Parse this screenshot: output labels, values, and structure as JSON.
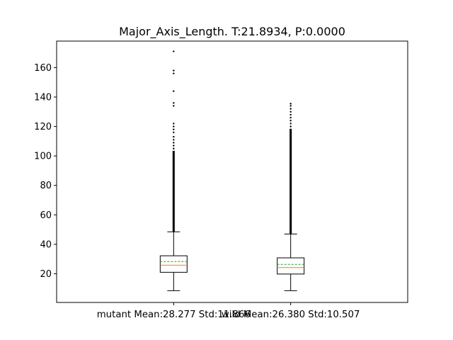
{
  "chart_data": {
    "type": "boxplot",
    "title": "Major_Axis_Length. T:21.8934, P:0.0000",
    "xlabel": "",
    "ylabel": "",
    "categories": [
      "mutant Mean:28.277 Std:11.866",
      "wild Mean:26.380 Std:10.507"
    ],
    "ylim": [
      0.5,
      178
    ],
    "yticks": [
      20,
      40,
      60,
      80,
      100,
      120,
      140,
      160
    ],
    "grid": false,
    "show_mean_line": true,
    "colors": {
      "box": "#000000",
      "median": "#ff7f0e",
      "mean": "#2ca02c",
      "flier": "#000000"
    },
    "series": [
      {
        "whisker_low": 8.5,
        "q1": 21.0,
        "median": 25.8,
        "q3": 32.2,
        "whisker_high": 48.5,
        "mean": 28.277,
        "std": 11.866,
        "outlier_dense_range": [
          48.5,
          103.5
        ],
        "outliers": [
          105,
          107,
          109,
          111,
          113,
          116,
          118,
          120,
          122,
          134,
          136,
          144,
          156,
          158,
          171
        ]
      },
      {
        "whisker_low": 8.5,
        "q1": 19.8,
        "median": 24.2,
        "q3": 30.8,
        "whisker_high": 47.0,
        "mean": 26.38,
        "std": 10.507,
        "outlier_dense_range": [
          47.0,
          118.5
        ],
        "outliers": [
          120,
          122,
          124,
          126,
          128,
          130,
          132,
          134,
          135.5
        ]
      }
    ]
  }
}
